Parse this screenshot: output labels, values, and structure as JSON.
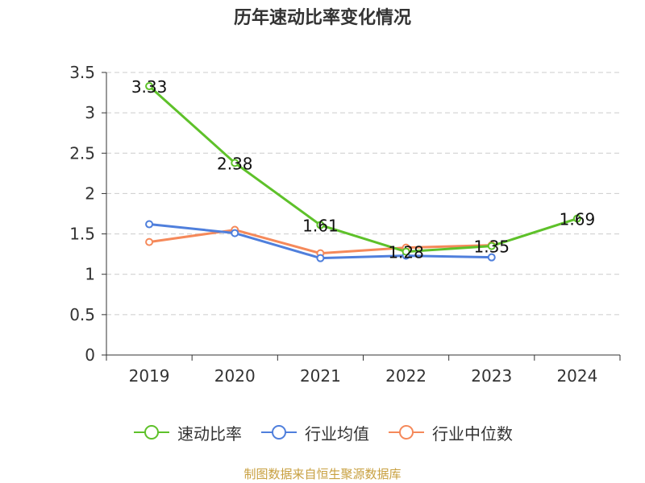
{
  "colors": {
    "series": [
      "#5ec12a",
      "#4f7fdc",
      "#f5895a"
    ],
    "axis": "#333333",
    "grid": "#cccccc",
    "source": "#c8a040"
  },
  "chart_data": {
    "type": "line",
    "title": "历年速动比率变化情况",
    "categories": [
      "2019",
      "2020",
      "2021",
      "2022",
      "2023",
      "2024"
    ],
    "ylim": [
      0,
      3.5
    ],
    "yticks": [
      "0",
      "0.5",
      "1",
      "1.5",
      "2",
      "2.5",
      "3",
      "3.5"
    ],
    "grid": true,
    "legend_position": "bottom",
    "series": [
      {
        "name": "速动比率",
        "values": [
          3.33,
          2.38,
          1.61,
          1.28,
          1.35,
          1.69
        ],
        "labels": [
          "3.33",
          "2.38",
          "1.61",
          "1.28",
          "1.35",
          "1.69"
        ],
        "show_labels": true
      },
      {
        "name": "行业均值",
        "values": [
          1.62,
          1.51,
          1.2,
          1.23,
          1.21,
          null
        ],
        "show_labels": false
      },
      {
        "name": "行业中位数",
        "values": [
          1.4,
          1.55,
          1.26,
          1.33,
          1.36,
          null
        ],
        "show_labels": false
      }
    ]
  },
  "source_text": "制图数据来自恒生聚源数据库"
}
